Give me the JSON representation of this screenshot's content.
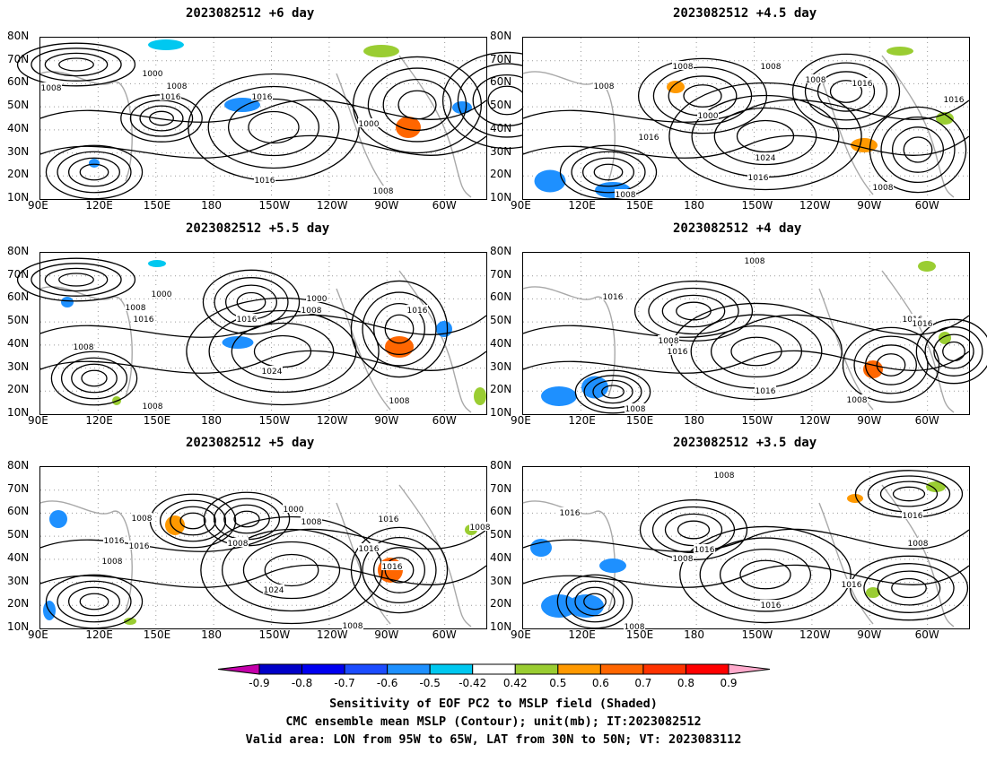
{
  "chart_data": [
    {
      "type": "heatmap",
      "title": "2023082512 +6 day",
      "lat_labels": [
        "80N",
        "70N",
        "60N",
        "50N",
        "40N",
        "30N",
        "20N",
        "10N"
      ],
      "lon_labels": [
        "90E",
        "120E",
        "150E",
        "180",
        "150W",
        "120W",
        "90W",
        "60W"
      ],
      "contour_labels": [
        "1000",
        "1008",
        "1016",
        "1016",
        "1000",
        "1008",
        "1016",
        "1008"
      ]
    },
    {
      "type": "heatmap",
      "title": "2023082512 +4.5 day",
      "lat_labels": [
        "80N",
        "70N",
        "60N",
        "50N",
        "40N",
        "30N",
        "20N",
        "10N"
      ],
      "lon_labels": [
        "90E",
        "120E",
        "150E",
        "180",
        "150W",
        "120W",
        "90W",
        "60W"
      ],
      "contour_labels": [
        "1008",
        "1008",
        "1008",
        "1016",
        "1000",
        "1016",
        "1024",
        "1016",
        "1008",
        "1016",
        "1008",
        "1008"
      ]
    },
    {
      "type": "heatmap",
      "title": "2023082512 +5.5 day",
      "lat_labels": [
        "80N",
        "70N",
        "60N",
        "50N",
        "40N",
        "30N",
        "20N",
        "10N"
      ],
      "lon_labels": [
        "90E",
        "120E",
        "150E",
        "180",
        "150W",
        "120W",
        "90W",
        "60W"
      ],
      "contour_labels": [
        "1000",
        "1008",
        "1016",
        "1016",
        "1000",
        "1008",
        "1016",
        "1024",
        "1008",
        "1008",
        "1008"
      ]
    },
    {
      "type": "heatmap",
      "title": "2023082512 +4 day",
      "lat_labels": [
        "80N",
        "70N",
        "60N",
        "50N",
        "40N",
        "30N",
        "20N",
        "10N"
      ],
      "lon_labels": [
        "90E",
        "120E",
        "150E",
        "180",
        "150W",
        "120W",
        "90W",
        "60W"
      ],
      "contour_labels": [
        "1008",
        "1016",
        "1008",
        "1016",
        "1016",
        "1016",
        "1016",
        "1008",
        "1008"
      ]
    },
    {
      "type": "heatmap",
      "title": "2023082512 +5 day",
      "lat_labels": [
        "80N",
        "70N",
        "60N",
        "50N",
        "40N",
        "30N",
        "20N",
        "10N"
      ],
      "lon_labels": [
        "90E",
        "120E",
        "150E",
        "180",
        "150W",
        "120W",
        "90W",
        "60W"
      ],
      "contour_labels": [
        "1008",
        "1016",
        "1016",
        "1008",
        "1000",
        "1008",
        "1016",
        "1024",
        "1008",
        "1008",
        "1016",
        "1016",
        "1008"
      ]
    },
    {
      "type": "heatmap",
      "title": "2023082512 +3.5 day",
      "lat_labels": [
        "80N",
        "70N",
        "60N",
        "50N",
        "40N",
        "30N",
        "20N",
        "10N"
      ],
      "lon_labels": [
        "90E",
        "120E",
        "150E",
        "180",
        "150W",
        "120W",
        "90W",
        "60W"
      ],
      "contour_labels": [
        "1008",
        "1016",
        "1016",
        "1008",
        "1016",
        "1016",
        "1016",
        "1008",
        "1008"
      ]
    }
  ],
  "colorbar": {
    "labels": [
      "-0.9",
      "-0.8",
      "-0.7",
      "-0.6",
      "-0.5",
      "-0.42",
      "0.42",
      "0.5",
      "0.6",
      "0.7",
      "0.8",
      "0.9"
    ],
    "colors": [
      "#c400aa",
      "#0000c8",
      "#0000f0",
      "#1c4cff",
      "#1e90ff",
      "#00c8f0",
      "#ffffff",
      "#9acd32",
      "#ff9900",
      "#ff6600",
      "#ff3300",
      "#ff0000",
      "#ffaacc"
    ]
  },
  "footer": {
    "line1": "Sensitivity of EOF PC2 to MSLP field (Shaded)",
    "line2": "CMC ensemble mean MSLP (Contour); unit(mb); IT:2023082512",
    "line3": "Valid area: LON from 95W to 65W, LAT from 30N to 50N; VT: 2023083112"
  }
}
